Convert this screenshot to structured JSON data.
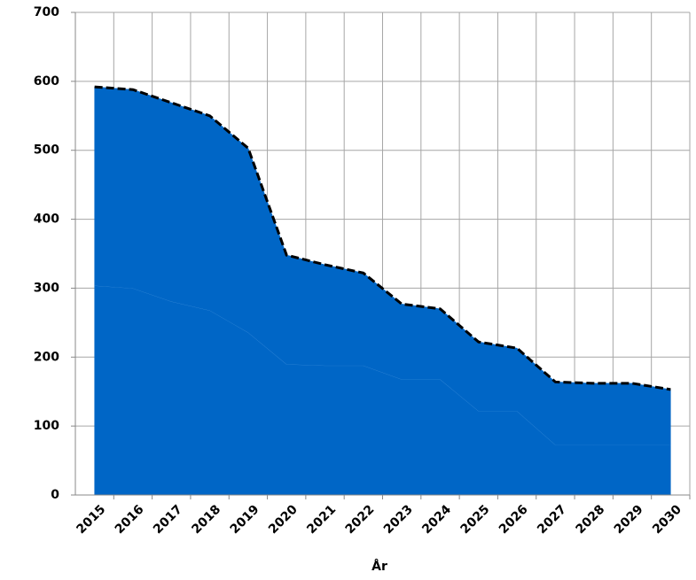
{
  "chart_data": {
    "type": "stacked_area",
    "x_label": "År",
    "categories": [
      "2015",
      "2016",
      "2017",
      "2018",
      "2019",
      "2020",
      "2021",
      "2022",
      "2023",
      "2024",
      "2025",
      "2026",
      "2027",
      "2028",
      "2029",
      "2030"
    ],
    "series": [
      {
        "color": "#0066c6",
        "values": [
          304,
          300,
          281,
          268,
          236,
          190,
          188,
          188,
          168,
          168,
          122,
          122,
          73,
          73,
          73,
          73
        ]
      },
      {
        "color": "#0066c6",
        "values": [
          288,
          288,
          288,
          282,
          267,
          158,
          146,
          134,
          109,
          102,
          100,
          91,
          91,
          89,
          89,
          80
        ]
      }
    ],
    "ylim": [
      0,
      700
    ],
    "yticks": [
      0,
      100,
      200,
      300,
      400,
      500,
      600,
      700
    ],
    "grid": true,
    "total_line": "dashed"
  }
}
